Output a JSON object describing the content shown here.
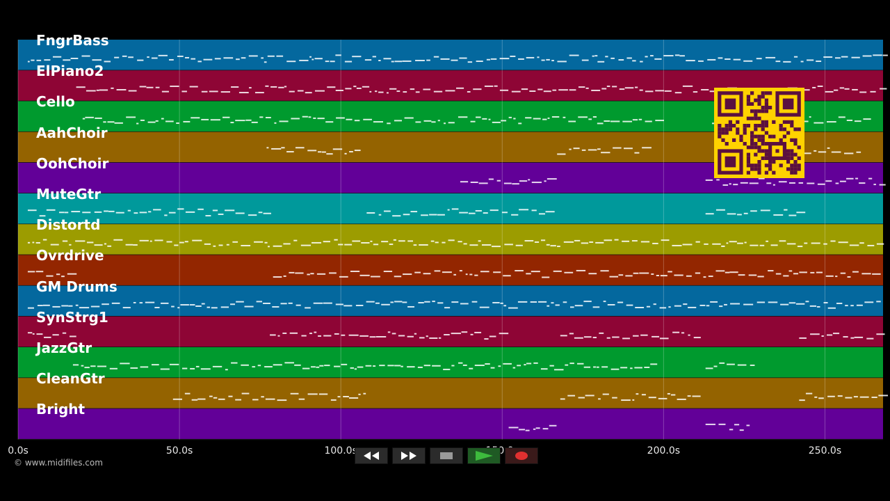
{
  "tracks": [
    {
      "label": "FngrBass",
      "color": "#04689e"
    },
    {
      "label": "ElPiano2",
      "color": "#8e0535"
    },
    {
      "label": "Cello",
      "color": "#009a2e"
    },
    {
      "label": "AahChoir",
      "color": "#946300"
    },
    {
      "label": "OohChoir",
      "color": "#620098"
    },
    {
      "label": "MuteGtr",
      "color": "#00999b"
    },
    {
      "label": "Distortd",
      "color": "#9c9c00"
    },
    {
      "label": "Ovrdrive",
      "color": "#932600"
    },
    {
      "label": "GM Drums",
      "color": "#04689e"
    },
    {
      "label": "SynStrg1",
      "color": "#8e0535"
    },
    {
      "label": "JazzGtr",
      "color": "#009a2e"
    },
    {
      "label": "CleanGtr",
      "color": "#946300"
    },
    {
      "label": "Bright",
      "color": "#620098"
    }
  ],
  "axis": {
    "ticks": [
      {
        "value": 0,
        "label": "0.0s"
      },
      {
        "value": 50,
        "label": "50.0s"
      },
      {
        "value": 100,
        "label": "100.0s"
      },
      {
        "value": 150,
        "label": "150.0s"
      },
      {
        "value": 200,
        "label": "200.0s"
      },
      {
        "value": 250,
        "label": "250.0s"
      }
    ],
    "max_seconds": 268
  },
  "copyright": "© www.midifiles.com",
  "transport": {
    "rewind_icon": "rewind-icon",
    "fastforward_icon": "fast-forward-icon",
    "stop_icon": "stop-icon",
    "play_icon": "play-icon",
    "record_icon": "record-icon"
  },
  "colors": {
    "qr_fg": "#ffd200",
    "qr_bg": "#5a1040"
  }
}
